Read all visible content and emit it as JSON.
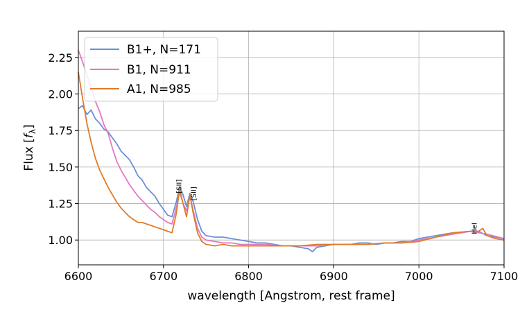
{
  "chart_data": {
    "type": "line",
    "xlabel": "wavelength [Angstrom, rest frame]",
    "ylabel_main": "Flux [",
    "ylabel_var": "f",
    "ylabel_sub": "λ",
    "ylabel_end": "]",
    "xlim": [
      6600,
      7100
    ],
    "ylim": [
      0.83,
      2.43
    ],
    "xticks": [
      6600,
      6700,
      6800,
      6900,
      7000,
      7100
    ],
    "xtick_labels": [
      "6600",
      "6700",
      "6800",
      "6900",
      "7000",
      "7100"
    ],
    "yticks": [
      1.0,
      1.25,
      1.5,
      1.75,
      2.0,
      2.25
    ],
    "ytick_labels": [
      "1.00",
      "1.25",
      "1.50",
      "1.75",
      "2.00",
      "2.25"
    ],
    "grid": true,
    "legend_position": "top-left",
    "series": [
      {
        "name": "B1+, N=171",
        "color": "#6a8fd6",
        "points": [
          [
            6600,
            1.9
          ],
          [
            6605,
            1.92
          ],
          [
            6610,
            1.86
          ],
          [
            6615,
            1.89
          ],
          [
            6620,
            1.83
          ],
          [
            6625,
            1.8
          ],
          [
            6630,
            1.76
          ],
          [
            6635,
            1.74
          ],
          [
            6640,
            1.7
          ],
          [
            6645,
            1.66
          ],
          [
            6650,
            1.61
          ],
          [
            6655,
            1.58
          ],
          [
            6660,
            1.55
          ],
          [
            6665,
            1.5
          ],
          [
            6670,
            1.44
          ],
          [
            6675,
            1.41
          ],
          [
            6680,
            1.36
          ],
          [
            6685,
            1.33
          ],
          [
            6690,
            1.3
          ],
          [
            6695,
            1.25
          ],
          [
            6700,
            1.21
          ],
          [
            6705,
            1.17
          ],
          [
            6710,
            1.16
          ],
          [
            6715,
            1.26
          ],
          [
            6719,
            1.36
          ],
          [
            6723,
            1.31
          ],
          [
            6727,
            1.23
          ],
          [
            6731,
            1.32
          ],
          [
            6735,
            1.26
          ],
          [
            6740,
            1.14
          ],
          [
            6745,
            1.06
          ],
          [
            6750,
            1.03
          ],
          [
            6760,
            1.02
          ],
          [
            6770,
            1.02
          ],
          [
            6780,
            1.01
          ],
          [
            6790,
            1.0
          ],
          [
            6800,
            0.99
          ],
          [
            6810,
            0.98
          ],
          [
            6820,
            0.98
          ],
          [
            6830,
            0.97
          ],
          [
            6840,
            0.96
          ],
          [
            6850,
            0.96
          ],
          [
            6860,
            0.95
          ],
          [
            6870,
            0.94
          ],
          [
            6875,
            0.92
          ],
          [
            6880,
            0.95
          ],
          [
            6890,
            0.96
          ],
          [
            6900,
            0.97
          ],
          [
            6910,
            0.97
          ],
          [
            6920,
            0.97
          ],
          [
            6930,
            0.98
          ],
          [
            6940,
            0.98
          ],
          [
            6950,
            0.97
          ],
          [
            6960,
            0.98
          ],
          [
            6970,
            0.98
          ],
          [
            6980,
            0.99
          ],
          [
            6990,
            0.99
          ],
          [
            7000,
            1.01
          ],
          [
            7010,
            1.02
          ],
          [
            7020,
            1.03
          ],
          [
            7030,
            1.04
          ],
          [
            7040,
            1.05
          ],
          [
            7050,
            1.05
          ],
          [
            7060,
            1.06
          ],
          [
            7070,
            1.06
          ],
          [
            7080,
            1.03
          ],
          [
            7090,
            1.02
          ],
          [
            7100,
            1.01
          ]
        ]
      },
      {
        "name": "B1, N=911",
        "color": "#e377c2",
        "points": [
          [
            6600,
            2.3
          ],
          [
            6605,
            2.22
          ],
          [
            6610,
            2.13
          ],
          [
            6615,
            2.04
          ],
          [
            6620,
            1.95
          ],
          [
            6625,
            1.88
          ],
          [
            6630,
            1.79
          ],
          [
            6635,
            1.73
          ],
          [
            6640,
            1.63
          ],
          [
            6645,
            1.54
          ],
          [
            6650,
            1.48
          ],
          [
            6655,
            1.43
          ],
          [
            6660,
            1.38
          ],
          [
            6665,
            1.34
          ],
          [
            6670,
            1.3
          ],
          [
            6675,
            1.27
          ],
          [
            6680,
            1.24
          ],
          [
            6685,
            1.21
          ],
          [
            6690,
            1.19
          ],
          [
            6695,
            1.16
          ],
          [
            6700,
            1.14
          ],
          [
            6705,
            1.12
          ],
          [
            6710,
            1.11
          ],
          [
            6715,
            1.22
          ],
          [
            6719,
            1.33
          ],
          [
            6723,
            1.25
          ],
          [
            6727,
            1.2
          ],
          [
            6731,
            1.3
          ],
          [
            6735,
            1.2
          ],
          [
            6740,
            1.08
          ],
          [
            6745,
            1.02
          ],
          [
            6750,
            1.0
          ],
          [
            6760,
            0.99
          ],
          [
            6770,
            0.98
          ],
          [
            6780,
            0.98
          ],
          [
            6790,
            0.97
          ],
          [
            6800,
            0.97
          ],
          [
            6820,
            0.97
          ],
          [
            6840,
            0.96
          ],
          [
            6860,
            0.96
          ],
          [
            6880,
            0.96
          ],
          [
            6900,
            0.97
          ],
          [
            6920,
            0.97
          ],
          [
            6940,
            0.97
          ],
          [
            6960,
            0.98
          ],
          [
            6980,
            0.98
          ],
          [
            7000,
            1.0
          ],
          [
            7020,
            1.02
          ],
          [
            7040,
            1.04
          ],
          [
            7060,
            1.06
          ],
          [
            7080,
            1.04
          ],
          [
            7100,
            1.01
          ]
        ]
      },
      {
        "name": "A1, N=985",
        "color": "#e07b28",
        "points": [
          [
            6600,
            2.15
          ],
          [
            6605,
            1.97
          ],
          [
            6610,
            1.8
          ],
          [
            6615,
            1.67
          ],
          [
            6620,
            1.56
          ],
          [
            6625,
            1.48
          ],
          [
            6630,
            1.42
          ],
          [
            6635,
            1.36
          ],
          [
            6640,
            1.31
          ],
          [
            6645,
            1.26
          ],
          [
            6650,
            1.22
          ],
          [
            6655,
            1.19
          ],
          [
            6660,
            1.16
          ],
          [
            6665,
            1.14
          ],
          [
            6670,
            1.12
          ],
          [
            6675,
            1.12
          ],
          [
            6680,
            1.11
          ],
          [
            6685,
            1.1
          ],
          [
            6690,
            1.09
          ],
          [
            6695,
            1.08
          ],
          [
            6700,
            1.07
          ],
          [
            6705,
            1.06
          ],
          [
            6710,
            1.05
          ],
          [
            6715,
            1.18
          ],
          [
            6719,
            1.35
          ],
          [
            6723,
            1.25
          ],
          [
            6727,
            1.16
          ],
          [
            6731,
            1.31
          ],
          [
            6735,
            1.18
          ],
          [
            6740,
            1.05
          ],
          [
            6745,
            0.99
          ],
          [
            6750,
            0.97
          ],
          [
            6760,
            0.96
          ],
          [
            6770,
            0.97
          ],
          [
            6780,
            0.96
          ],
          [
            6790,
            0.96
          ],
          [
            6800,
            0.96
          ],
          [
            6820,
            0.96
          ],
          [
            6840,
            0.96
          ],
          [
            6860,
            0.96
          ],
          [
            6880,
            0.97
          ],
          [
            6900,
            0.97
          ],
          [
            6920,
            0.97
          ],
          [
            6940,
            0.97
          ],
          [
            6960,
            0.98
          ],
          [
            6980,
            0.98
          ],
          [
            7000,
            0.99
          ],
          [
            7020,
            1.02
          ],
          [
            7040,
            1.05
          ],
          [
            7060,
            1.06
          ],
          [
            7070,
            1.06
          ],
          [
            7075,
            1.08
          ],
          [
            7080,
            1.03
          ],
          [
            7090,
            1.01
          ],
          [
            7100,
            1.0
          ]
        ]
      }
    ],
    "annotations": [
      {
        "text": "[SII]",
        "x": 6721,
        "y": 1.32
      },
      {
        "text": "[SII]",
        "x": 6738,
        "y": 1.27
      },
      {
        "text": "HeI",
        "x": 7068,
        "y": 1.04
      }
    ]
  }
}
